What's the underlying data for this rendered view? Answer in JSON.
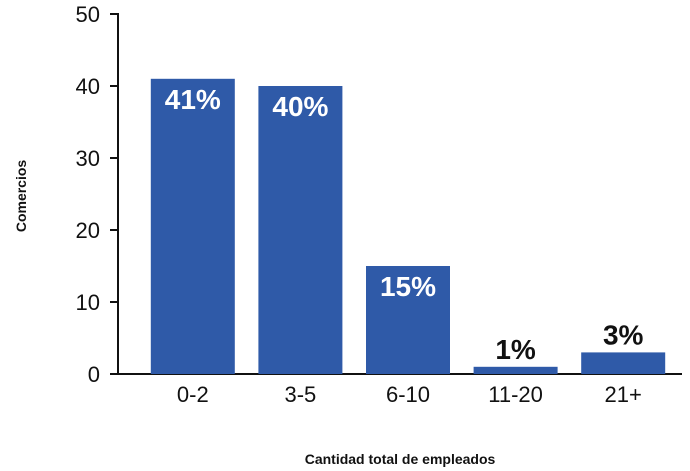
{
  "chart_data": {
    "type": "bar",
    "title": "",
    "xlabel": "Cantidad total de empleados",
    "ylabel": "Comercios",
    "categories": [
      "0-2",
      "3-5",
      "6-10",
      "11-20",
      "21+"
    ],
    "values": [
      41,
      40,
      15,
      1,
      3
    ],
    "data_labels": [
      "41%",
      "40%",
      "15%",
      "1%",
      "3%"
    ],
    "yticks": [
      0,
      10,
      20,
      30,
      40,
      50
    ],
    "ylim": [
      0,
      50
    ],
    "grid": false,
    "legend": "none",
    "bar_color": "#2f5aa8",
    "label_color_inside": "#ffffff",
    "label_color_outside": "#111111"
  }
}
